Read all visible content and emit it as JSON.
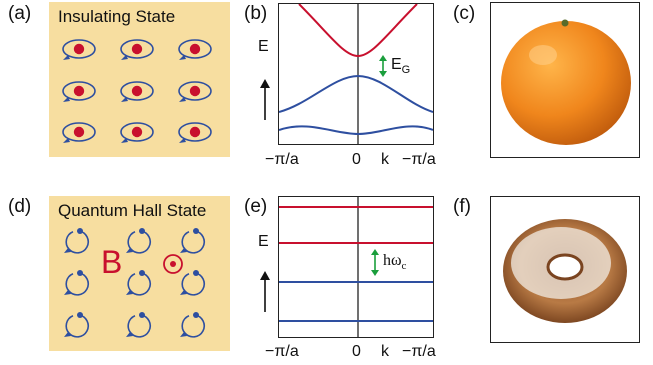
{
  "figure": {
    "panels": {
      "a": {
        "label": "(a)",
        "title": "Insulating State"
      },
      "b": {
        "label": "(b)",
        "y_axis": "E",
        "gap_label": "E",
        "gap_subscript": "G",
        "x_ticks": [
          "−π/a",
          "0",
          "k",
          "−π/a"
        ]
      },
      "c": {
        "label": "(c)"
      },
      "d": {
        "label": "(d)",
        "title": "Quantum Hall State",
        "field_label": "B"
      },
      "e": {
        "label": "(e)",
        "y_axis": "E",
        "gap_label": "hω",
        "gap_subscript": "c",
        "x_ticks": [
          "−π/a",
          "0",
          "k",
          "−π/a"
        ]
      },
      "f": {
        "label": "(f)"
      }
    },
    "colors": {
      "background_panel": "#f7dea0",
      "conduction_band": "#c8102e",
      "valence_band": "#2e4fa0",
      "electron": "#c8102e",
      "orbit": "#2e4fa0",
      "gap_arrow": "#1a9e3c"
    },
    "icons": {
      "c": "orange-fruit-photo",
      "f": "sugared-donut-photo"
    }
  }
}
